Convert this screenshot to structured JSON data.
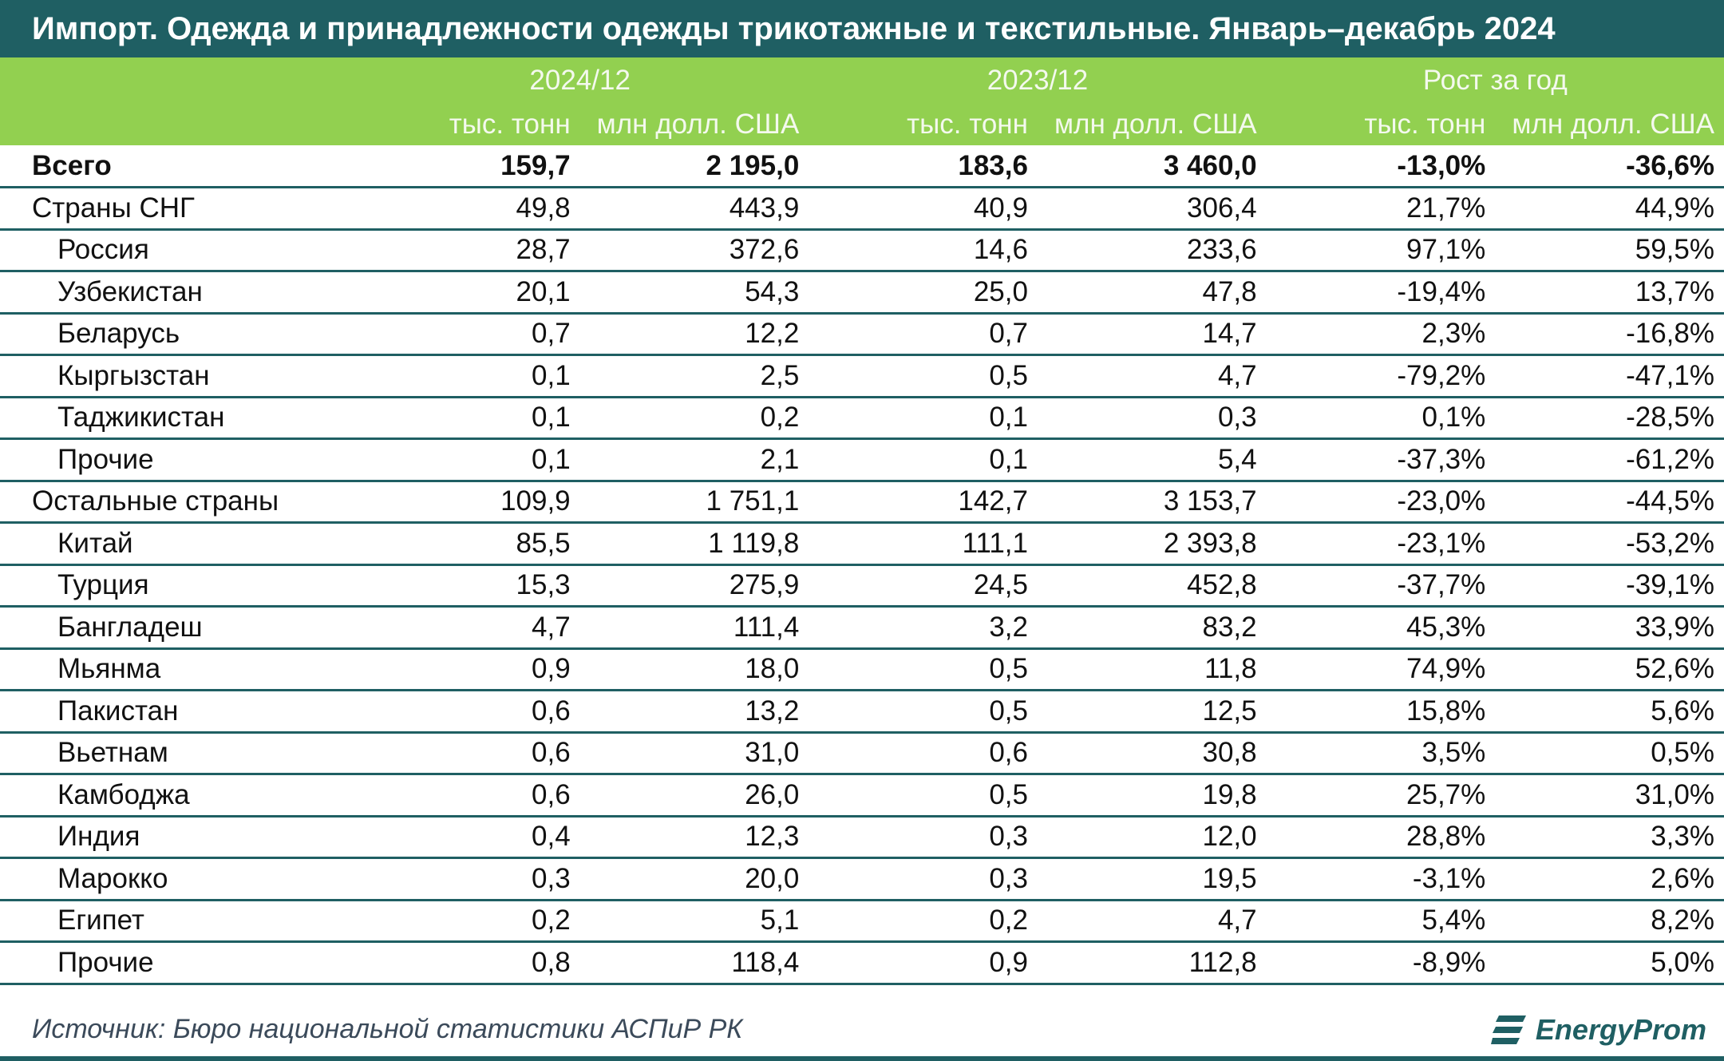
{
  "title": "Импорт. Одежда и принадлежности одежды трикотажные и текстильные. Январь–декабрь 2024",
  "headers": {
    "groups": [
      "2024/12",
      "2023/12",
      "Рост за год"
    ],
    "units": [
      "тыс. тонн",
      "млн долл. США",
      "тыс. тонн",
      "млн долл. США",
      "тыс. тонн",
      "млн долл. США"
    ]
  },
  "rows": [
    {
      "name": "Всего",
      "values": [
        "159,7",
        "2 195,0",
        "183,6",
        "3 460,0",
        "-13,0%",
        "-36,6%"
      ]
    },
    {
      "name": "Страны СНГ",
      "values": [
        "49,8",
        "443,9",
        "40,9",
        "306,4",
        "21,7%",
        "44,9%"
      ]
    },
    {
      "name": "Россия",
      "values": [
        "28,7",
        "372,6",
        "14,6",
        "233,6",
        "97,1%",
        "59,5%"
      ]
    },
    {
      "name": "Узбекистан",
      "values": [
        "20,1",
        "54,3",
        "25,0",
        "47,8",
        "-19,4%",
        "13,7%"
      ]
    },
    {
      "name": "Беларусь",
      "values": [
        "0,7",
        "12,2",
        "0,7",
        "14,7",
        "2,3%",
        "-16,8%"
      ]
    },
    {
      "name": "Кыргызстан",
      "values": [
        "0,1",
        "2,5",
        "0,5",
        "4,7",
        "-79,2%",
        "-47,1%"
      ]
    },
    {
      "name": "Таджикистан",
      "values": [
        "0,1",
        "0,2",
        "0,1",
        "0,3",
        "0,1%",
        "-28,5%"
      ]
    },
    {
      "name": "Прочие",
      "values": [
        "0,1",
        "2,1",
        "0,1",
        "5,4",
        "-37,3%",
        "-61,2%"
      ]
    },
    {
      "name": "Остальные страны",
      "values": [
        "109,9",
        "1 751,1",
        "142,7",
        "3 153,7",
        "-23,0%",
        "-44,5%"
      ]
    },
    {
      "name": "Китай",
      "values": [
        "85,5",
        "1 119,8",
        "111,1",
        "2 393,8",
        "-23,1%",
        "-53,2%"
      ]
    },
    {
      "name": "Турция",
      "values": [
        "15,3",
        "275,9",
        "24,5",
        "452,8",
        "-37,7%",
        "-39,1%"
      ]
    },
    {
      "name": "Бангладеш",
      "values": [
        "4,7",
        "111,4",
        "3,2",
        "83,2",
        "45,3%",
        "33,9%"
      ]
    },
    {
      "name": "Мьянма",
      "values": [
        "0,9",
        "18,0",
        "0,5",
        "11,8",
        "74,9%",
        "52,6%"
      ]
    },
    {
      "name": "Пакистан",
      "values": [
        "0,6",
        "13,2",
        "0,5",
        "12,5",
        "15,8%",
        "5,6%"
      ]
    },
    {
      "name": "Вьетнам",
      "values": [
        "0,6",
        "31,0",
        "0,6",
        "30,8",
        "3,5%",
        "0,5%"
      ]
    },
    {
      "name": "Камбоджа",
      "values": [
        "0,6",
        "26,0",
        "0,5",
        "19,8",
        "25,7%",
        "31,0%"
      ]
    },
    {
      "name": "Индия",
      "values": [
        "0,4",
        "12,3",
        "0,3",
        "12,0",
        "28,8%",
        "3,3%"
      ]
    },
    {
      "name": "Марокко",
      "values": [
        "0,3",
        "20,0",
        "0,3",
        "19,5",
        "-3,1%",
        "2,6%"
      ]
    },
    {
      "name": "Египет",
      "values": [
        "0,2",
        "5,1",
        "0,2",
        "4,7",
        "5,4%",
        "8,2%"
      ]
    },
    {
      "name": "Прочие",
      "values": [
        "0,8",
        "118,4",
        "0,9",
        "112,8",
        "-8,9%",
        "5,0%"
      ]
    }
  ],
  "source": "Источник: Бюро национальной статистики АСПиР РК",
  "logo_text": "EnergyProm",
  "colors": {
    "title_bg": "#1f5f63",
    "header_bg": "#92d050",
    "rule": "#1f5f63"
  }
}
